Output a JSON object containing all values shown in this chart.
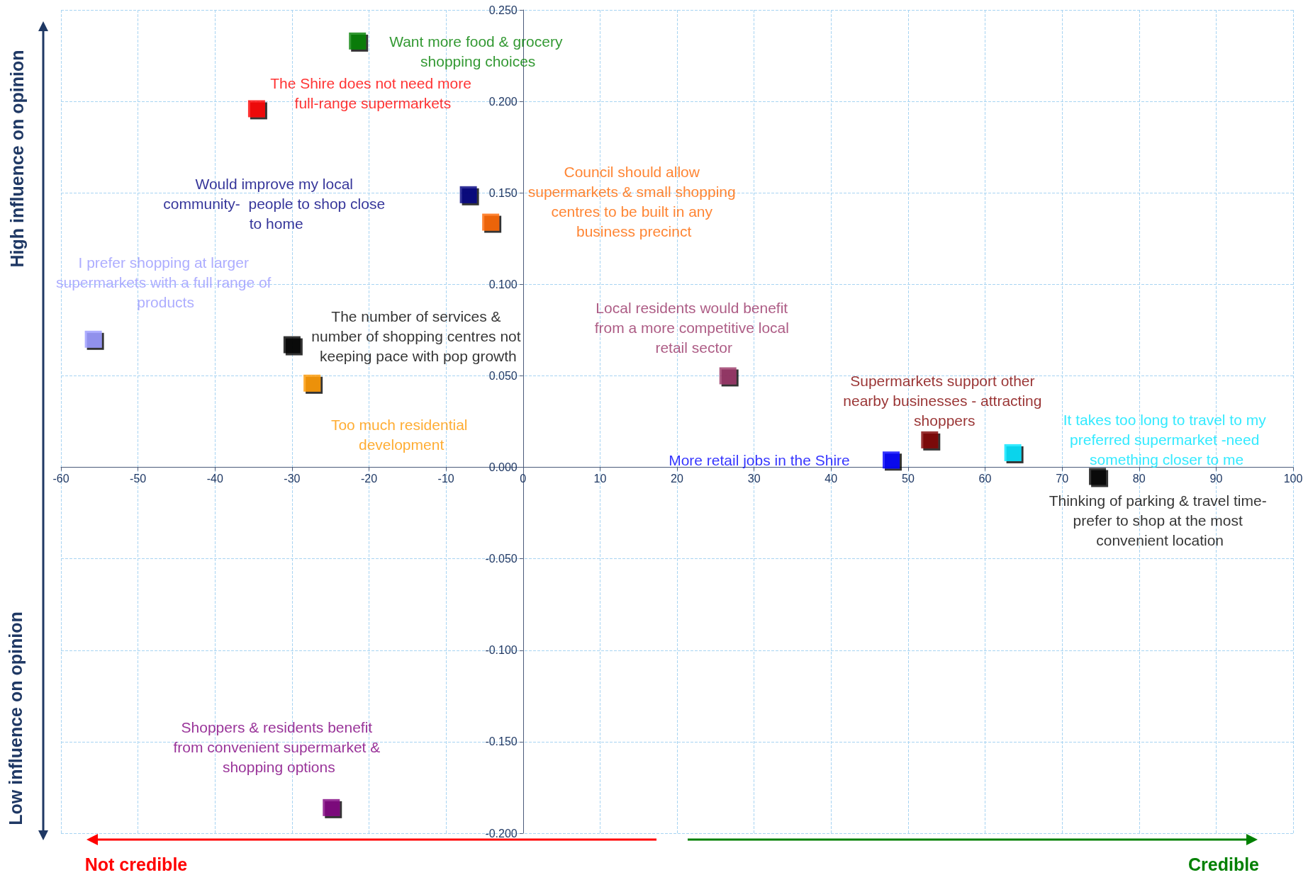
{
  "chart_data": {
    "type": "scatter",
    "marker": "square",
    "grid": true,
    "legend": false,
    "xlim": [
      -60,
      100
    ],
    "xticks": [
      -60,
      -50,
      -40,
      -30,
      -20,
      -10,
      0,
      10,
      20,
      30,
      40,
      50,
      60,
      70,
      80,
      90,
      100
    ],
    "ylim": [
      -0.2,
      0.25
    ],
    "yticks": [
      {
        "value": -0.2,
        "label": "-0.200"
      },
      {
        "value": -0.15,
        "label": "-0.150"
      },
      {
        "value": -0.1,
        "label": "-0.100"
      },
      {
        "value": -0.05,
        "label": "-0.050"
      },
      {
        "value": 0,
        "label": "0.000"
      },
      {
        "value": 0.05,
        "label": "0.050"
      },
      {
        "value": 0.1,
        "label": "0.100"
      },
      {
        "value": 0.15,
        "label": "0.150"
      },
      {
        "value": 0.2,
        "label": "0.200"
      },
      {
        "value": 0.25,
        "label": "0.250"
      }
    ],
    "annotations": [
      "High influence on opinion",
      "Low influence on opinion",
      "Not credible",
      "Credible"
    ],
    "series": [
      {
        "name": "Want more food & grocery shopping choices",
        "color": "#008000",
        "x": [
          -21.5
        ],
        "values": [
          0.233
        ]
      },
      {
        "name": "The Shire does not need more full-range supermarkets",
        "color": "#ff0000",
        "x": [
          -34.6
        ],
        "values": [
          0.196
        ]
      },
      {
        "name": "Would improve my local community-  people to shop close to home",
        "color": "#000080",
        "x": [
          -7.1
        ],
        "values": [
          0.149
        ]
      },
      {
        "name": "Council should allow supermarkets & small shopping centres to be built in any business precinct",
        "color": "#ff6600",
        "x": [
          -4.2
        ],
        "values": [
          0.134
        ]
      },
      {
        "name": "I prefer shopping at larger supermarkets with a full range of products",
        "color": "#9999ff",
        "x": [
          -55.8
        ],
        "values": [
          0.07
        ]
      },
      {
        "name": "The number of services & number of shopping centres not keeping pace with pop growth",
        "color": "#000000",
        "x": [
          -30
        ],
        "values": [
          0.067
        ]
      },
      {
        "name": "Too much residential development",
        "color": "#ff9900",
        "x": [
          -27.4
        ],
        "values": [
          0.046
        ]
      },
      {
        "name": "Local residents would benefit from a more competitive local retail sector",
        "color": "#993366",
        "x": [
          26.6
        ],
        "values": [
          0.05
        ]
      },
      {
        "name": "Supermarkets support other nearby businesses - attracting shoppers",
        "color": "#800000",
        "x": [
          52.8
        ],
        "values": [
          0.015
        ]
      },
      {
        "name": "More retail jobs in the Shire",
        "color": "#0000ff",
        "x": [
          47.8
        ],
        "values": [
          0.004
        ]
      },
      {
        "name": "It takes too long to travel to my preferred supermarket -need something closer to me",
        "color": "#00e5ff",
        "x": [
          63.6
        ],
        "values": [
          0.008
        ]
      },
      {
        "name": "Thinking of parking & travel time- prefer to shop at the most convenient location",
        "color": "#000000",
        "x": [
          74.6
        ],
        "values": [
          -0.005
        ]
      },
      {
        "name": "Shoppers & residents benefit from convenient supermarket & shopping options",
        "color": "#800080",
        "x": [
          -24.9
        ],
        "values": [
          -0.186
        ]
      }
    ]
  }
}
